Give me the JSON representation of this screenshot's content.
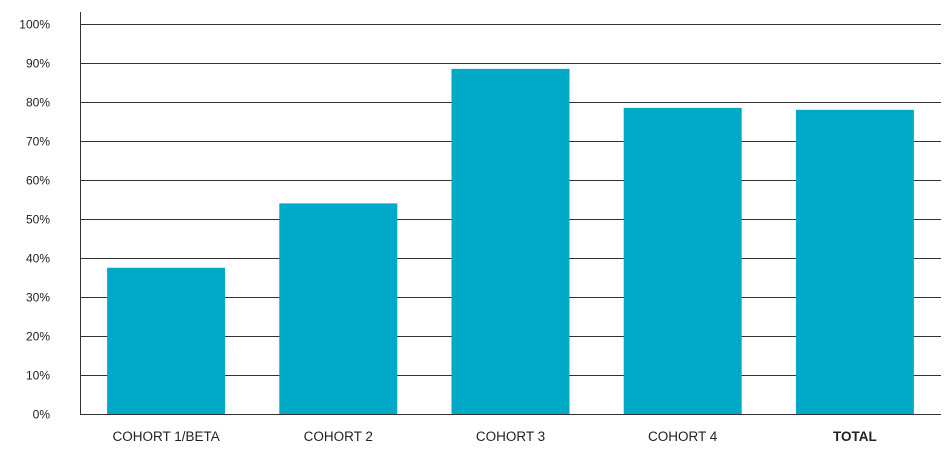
{
  "chart_data": {
    "type": "bar",
    "title": "",
    "xlabel": "",
    "ylabel": "",
    "categories": [
      "COHORT 1/BETA",
      "COHORT 2",
      "COHORT 3",
      "COHORT 4",
      "TOTAL"
    ],
    "values": [
      37.5,
      54,
      88.5,
      78.5,
      78
    ],
    "bold_categories": [
      "TOTAL"
    ],
    "ylim": [
      0,
      100
    ],
    "yticks": [
      0,
      10,
      20,
      30,
      40,
      50,
      60,
      70,
      80,
      90,
      100
    ],
    "ytick_labels": [
      "0%",
      "10%",
      "20%",
      "30%",
      "40%",
      "50%",
      "60%",
      "70%",
      "80%",
      "90%",
      "100%"
    ],
    "grid": true,
    "legend": "none",
    "bar_color": "#00a9c6",
    "grid_color": "#333333"
  }
}
